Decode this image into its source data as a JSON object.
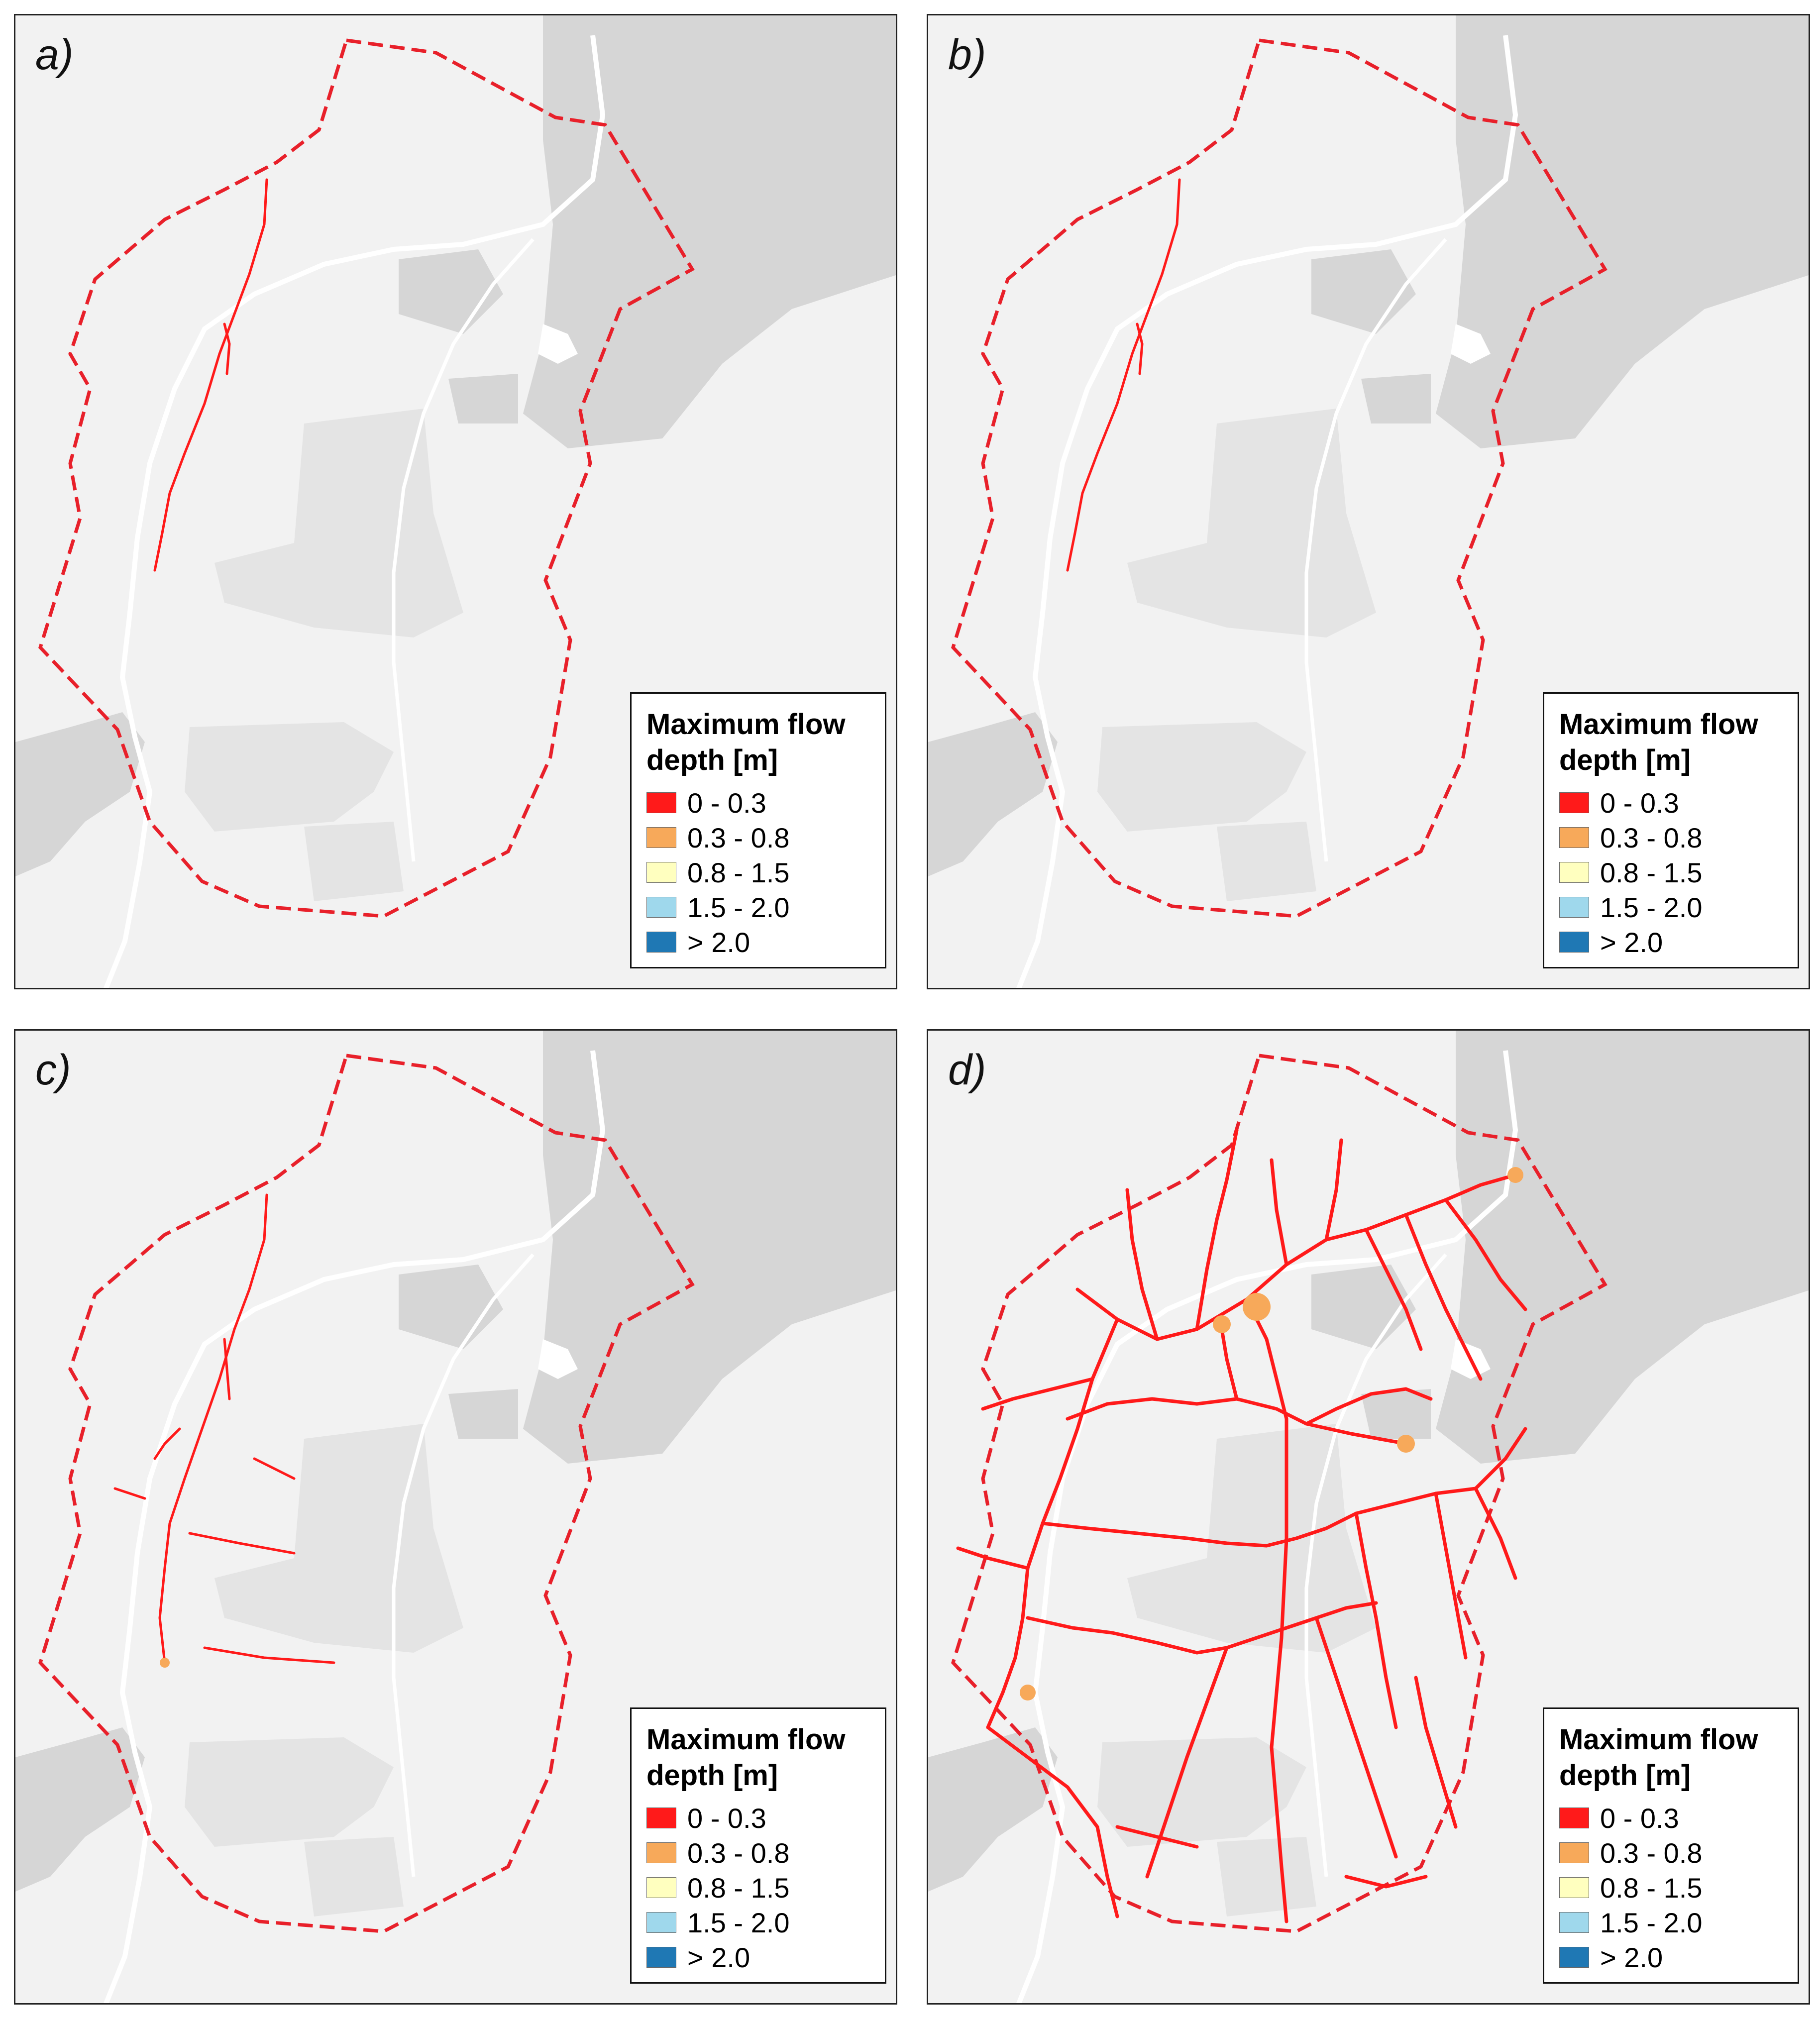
{
  "panels": [
    {
      "id": "a",
      "label": "a)",
      "flow_level": "minimal"
    },
    {
      "id": "b",
      "label": "b)",
      "flow_level": "minimal"
    },
    {
      "id": "c",
      "label": "c)",
      "flow_level": "low"
    },
    {
      "id": "d",
      "label": "d)",
      "flow_level": "extensive"
    }
  ],
  "legend": {
    "title_line1": "Maximum flow",
    "title_line2": "depth [m]",
    "classes": [
      {
        "label": "0 - 0.3",
        "color": "#ff1a1a"
      },
      {
        "label": "0.3 - 0.8",
        "color": "#f7a95a"
      },
      {
        "label": "0.8 - 1.5",
        "color": "#ffffbf"
      },
      {
        "label": "1.5 - 2.0",
        "color": "#9fd8ec"
      },
      {
        "label": "> 2.0",
        "color": "#1f78b4"
      }
    ]
  },
  "styles": {
    "boundary_color": "#e8202a",
    "background_color": "#f2f2f2",
    "landcover_color": "#d6d6d6",
    "urban_color": "#e4e4e4",
    "road_color": "#ffffff"
  }
}
